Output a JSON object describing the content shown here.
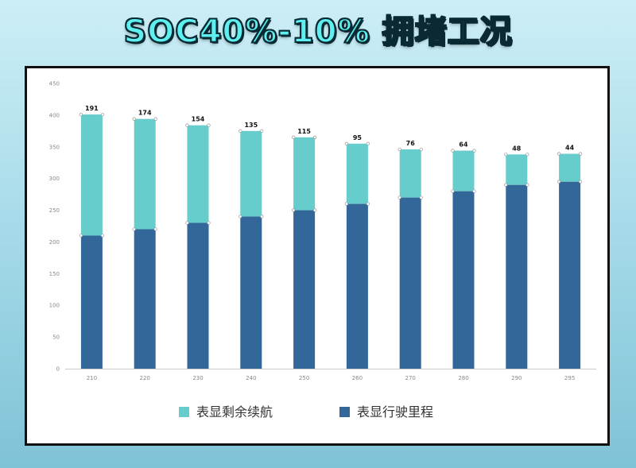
{
  "title": "SOC40%-10% 拥堵工况",
  "chart_data": {
    "type": "bar",
    "stacked": true,
    "categories": [
      "210",
      "220",
      "230",
      "240",
      "250",
      "260",
      "270",
      "280",
      "290",
      "295"
    ],
    "series": [
      {
        "name": "表显行驶里程",
        "values": [
          210,
          220,
          230,
          240,
          250,
          260,
          270,
          280,
          290,
          295
        ],
        "color": "#336699"
      },
      {
        "name": "表显剩余续航",
        "values": [
          191,
          174,
          154,
          135,
          115,
          95,
          76,
          64,
          48,
          44
        ],
        "color": "#66cccc"
      }
    ],
    "data_labels": [
      "191",
      "174",
      "154",
      "135",
      "115",
      "95",
      "76",
      "64",
      "48",
      "44"
    ],
    "ylim": [
      0,
      450
    ],
    "yticks": [
      "0",
      "50",
      "100",
      "150",
      "200",
      "250",
      "300",
      "350",
      "400",
      "450"
    ],
    "legend": [
      {
        "name": "表显剩余续航",
        "color": "#66cccc"
      },
      {
        "name": "表显行驶里程",
        "color": "#336699"
      }
    ],
    "legend_position": "bottom",
    "grid": false
  }
}
